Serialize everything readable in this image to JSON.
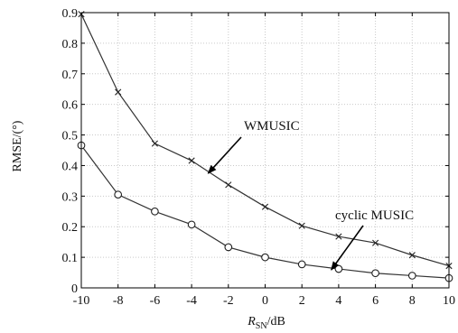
{
  "chart_data": {
    "type": "line",
    "x": [
      -10,
      -8,
      -6,
      -4,
      -2,
      0,
      2,
      4,
      6,
      8,
      10
    ],
    "series": [
      {
        "name": "WMUSIC",
        "marker": "x",
        "values": [
          0.895,
          0.64,
          0.472,
          0.416,
          0.337,
          0.265,
          0.203,
          0.168,
          0.147,
          0.107,
          0.072
        ]
      },
      {
        "name": "cyclic MUSIC",
        "marker": "o",
        "values": [
          0.466,
          0.305,
          0.25,
          0.207,
          0.133,
          0.1,
          0.077,
          0.062,
          0.048,
          0.04,
          0.032
        ]
      }
    ],
    "xlabel": {
      "main": "R",
      "sub": "SN",
      "unit": "/dB"
    },
    "ylabel": "RMSE/(°)",
    "xlim": [
      -10,
      10
    ],
    "ylim": [
      0,
      0.9
    ],
    "xticks": [
      -10,
      -8,
      -6,
      -4,
      -2,
      0,
      2,
      4,
      6,
      8,
      10
    ],
    "yticks": [
      0,
      0.1,
      0.2,
      0.3,
      0.4,
      0.5,
      0.6,
      0.7,
      0.8,
      0.9
    ],
    "grid": true,
    "annotations": [
      {
        "text": "WMUSIC",
        "series": "WMUSIC",
        "arrow_to_x": -3.1
      },
      {
        "text": "cyclic MUSIC",
        "series": "cyclic MUSIC",
        "arrow_to_x": 3.6
      }
    ],
    "colors": {
      "line": "#333333",
      "grid": "#c9c9c9",
      "axis": "#000000"
    }
  }
}
